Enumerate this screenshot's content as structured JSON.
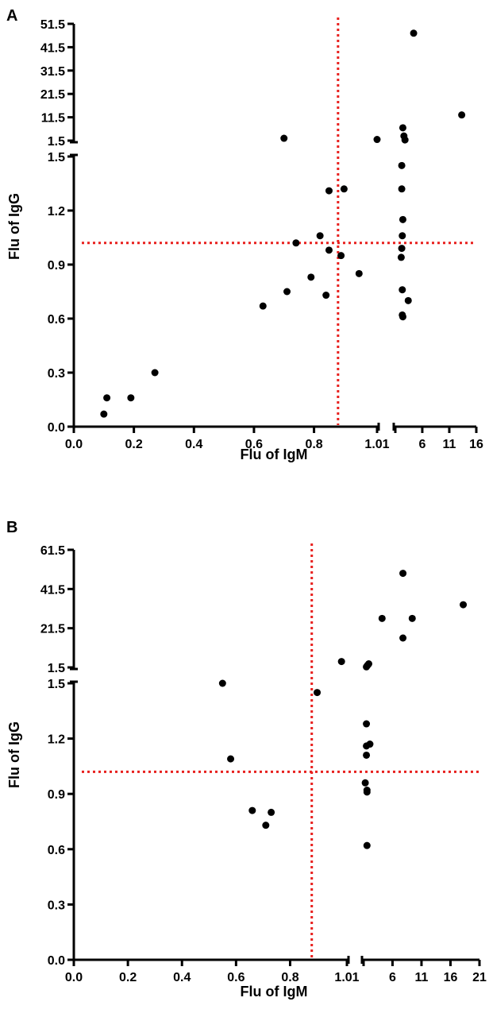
{
  "colors": {
    "point": "#000000",
    "threshold": "#e8201e",
    "axis": "#000000"
  },
  "chart_data": [
    {
      "type": "scatter",
      "panel_label": "A",
      "xlabel": "Flu of IgM",
      "ylabel": "Flu of IgG",
      "x_axis": {
        "broken": true,
        "lower_range": [
          0.0,
          1.01
        ],
        "lower_ticks": [
          "0.0",
          "0.2",
          "0.4",
          "0.6",
          "0.8",
          "1.01"
        ],
        "upper_range": [
          1.01,
          16
        ],
        "upper_ticks": [
          "6",
          "11",
          "16"
        ]
      },
      "y_axis": {
        "broken": true,
        "lower_range": [
          0.0,
          1.5
        ],
        "lower_ticks": [
          "0.0",
          "0.3",
          "0.6",
          "0.9",
          "1.2",
          "1.5"
        ],
        "upper_range": [
          1.5,
          51.5
        ],
        "upper_ticks": [
          "1.5",
          "11.5",
          "21.5",
          "31.5",
          "41.5",
          "51.5"
        ]
      },
      "thresholds": {
        "x": 0.88,
        "y": 1.02
      },
      "grid": false,
      "points": [
        {
          "x": 0.1,
          "y": 0.07
        },
        {
          "x": 0.11,
          "y": 0.16
        },
        {
          "x": 0.19,
          "y": 0.16
        },
        {
          "x": 0.27,
          "y": 0.3
        },
        {
          "x": 0.63,
          "y": 0.67
        },
        {
          "x": 0.71,
          "y": 0.75
        },
        {
          "x": 0.74,
          "y": 1.02
        },
        {
          "x": 0.79,
          "y": 0.83
        },
        {
          "x": 0.82,
          "y": 1.06
        },
        {
          "x": 0.84,
          "y": 0.73
        },
        {
          "x": 0.85,
          "y": 0.98
        },
        {
          "x": 0.85,
          "y": 1.31
        },
        {
          "x": 0.89,
          "y": 0.95
        },
        {
          "x": 0.9,
          "y": 1.32
        },
        {
          "x": 0.95,
          "y": 0.85
        },
        {
          "x": 0.7,
          "y": 2.5
        },
        {
          "x": 1.01,
          "y": 2.0
        },
        {
          "x": 2.2,
          "y": 1.45
        },
        {
          "x": 2.2,
          "y": 1.32
        },
        {
          "x": 2.4,
          "y": 1.15
        },
        {
          "x": 2.3,
          "y": 1.06
        },
        {
          "x": 2.2,
          "y": 0.99
        },
        {
          "x": 2.1,
          "y": 0.94
        },
        {
          "x": 2.3,
          "y": 0.76
        },
        {
          "x": 2.3,
          "y": 0.62
        },
        {
          "x": 2.4,
          "y": 0.61
        },
        {
          "x": 3.4,
          "y": 0.7
        },
        {
          "x": 2.4,
          "y": 7.0
        },
        {
          "x": 2.6,
          "y": 3.5
        },
        {
          "x": 2.8,
          "y": 1.8
        },
        {
          "x": 4.4,
          "y": 47.5
        },
        {
          "x": 13.3,
          "y": 12.5
        }
      ]
    },
    {
      "type": "scatter",
      "panel_label": "B",
      "xlabel": "Flu of IgM",
      "ylabel": "Flu of IgG",
      "x_axis": {
        "broken": true,
        "lower_range": [
          0.0,
          1.01
        ],
        "lower_ticks": [
          "0.0",
          "0.2",
          "0.4",
          "0.6",
          "0.8",
          "1.01"
        ],
        "upper_range": [
          1.01,
          21
        ],
        "upper_ticks": [
          "6",
          "11",
          "16",
          "21"
        ]
      },
      "y_axis": {
        "broken": true,
        "lower_range": [
          0.0,
          1.5
        ],
        "lower_ticks": [
          "0.0",
          "0.3",
          "0.6",
          "0.9",
          "1.2",
          "1.5"
        ],
        "upper_range": [
          1.5,
          61.5
        ],
        "upper_ticks": [
          "1.5",
          "21.5",
          "41.5",
          "61.5"
        ]
      },
      "thresholds": {
        "x": 0.88,
        "y": 1.02
      },
      "grid": false,
      "points": [
        {
          "x": 0.55,
          "y": 1.5
        },
        {
          "x": 0.58,
          "y": 1.09
        },
        {
          "x": 0.66,
          "y": 0.81
        },
        {
          "x": 0.71,
          "y": 0.73
        },
        {
          "x": 0.73,
          "y": 0.8
        },
        {
          "x": 0.9,
          "y": 1.45
        },
        {
          "x": 0.99,
          "y": 4.5
        },
        {
          "x": 1.5,
          "y": 1.28
        },
        {
          "x": 1.5,
          "y": 1.16
        },
        {
          "x": 2.1,
          "y": 1.17
        },
        {
          "x": 1.5,
          "y": 1.11
        },
        {
          "x": 1.3,
          "y": 0.96
        },
        {
          "x": 1.6,
          "y": 0.92
        },
        {
          "x": 1.6,
          "y": 0.91
        },
        {
          "x": 1.6,
          "y": 0.62
        },
        {
          "x": 1.5,
          "y": 1.8
        },
        {
          "x": 1.7,
          "y": 2.6
        },
        {
          "x": 1.9,
          "y": 3.3
        },
        {
          "x": 4.2,
          "y": 26.5
        },
        {
          "x": 7.8,
          "y": 49.5
        },
        {
          "x": 7.8,
          "y": 16.5
        },
        {
          "x": 9.4,
          "y": 26.5
        },
        {
          "x": 18.2,
          "y": 33.5
        }
      ]
    }
  ]
}
